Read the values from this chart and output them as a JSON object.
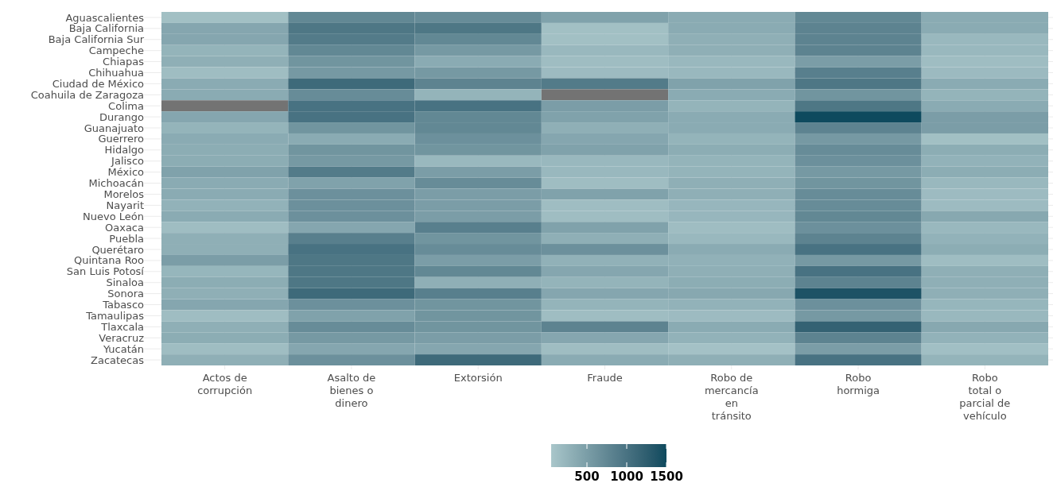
{
  "chart_data": {
    "type": "heatmap",
    "categories": [
      "Actos de\ncorrupción",
      "Asalto de\nbienes o\ndinero",
      "Extorsión",
      "Fraude",
      "Robo de\nmercancía\nen\ntránsito",
      "Robo\nhormiga",
      "Robo\ntotal o\nparcial de\nvehículo"
    ],
    "y_categories": [
      "Aguascalientes",
      "Baja California",
      "Baja California Sur",
      "Campeche",
      "Chiapas",
      "Chihuahua",
      "Ciudad de México",
      "Coahuila de Zaragoza",
      "Colima",
      "Durango",
      "Guanajuato",
      "Guerrero",
      "Hidalgo",
      "Jalisco",
      "México",
      "Michoacán",
      "Morelos",
      "Nayarit",
      "Nuevo León",
      "Oaxaca",
      "Puebla",
      "Querétaro",
      "Quintana Roo",
      "San Luis Potosí",
      "Sinaloa",
      "Sonora",
      "Tabasco",
      "Tamaulipas",
      "Tlaxcala",
      "Veracruz",
      "Yucatán",
      "Zacatecas"
    ],
    "cells": [
      [
        120,
        750,
        700,
        450,
        350,
        750,
        350
      ],
      [
        400,
        950,
        950,
        120,
        350,
        800,
        350
      ],
      [
        400,
        900,
        750,
        120,
        300,
        800,
        200
      ],
      [
        250,
        750,
        550,
        200,
        300,
        800,
        200
      ],
      [
        300,
        600,
        350,
        150,
        200,
        500,
        150
      ],
      [
        150,
        550,
        550,
        170,
        200,
        850,
        180
      ],
      [
        350,
        1100,
        800,
        900,
        450,
        950,
        350
      ],
      [
        350,
        700,
        250,
        null,
        350,
        600,
        250
      ],
      [
        null,
        1000,
        1000,
        500,
        250,
        950,
        350
      ],
      [
        400,
        1000,
        750,
        450,
        350,
        1500,
        500
      ],
      [
        250,
        600,
        750,
        300,
        350,
        800,
        500
      ],
      [
        350,
        350,
        650,
        400,
        250,
        550,
        120
      ],
      [
        330,
        600,
        600,
        450,
        330,
        700,
        330
      ],
      [
        330,
        550,
        200,
        200,
        250,
        650,
        270
      ],
      [
        450,
        900,
        500,
        200,
        250,
        550,
        330
      ],
      [
        350,
        450,
        700,
        150,
        300,
        600,
        200
      ],
      [
        350,
        650,
        500,
        450,
        300,
        700,
        170
      ],
      [
        270,
        650,
        500,
        150,
        220,
        700,
        170
      ],
      [
        350,
        650,
        500,
        150,
        220,
        750,
        380
      ],
      [
        150,
        400,
        850,
        450,
        150,
        650,
        200
      ],
      [
        300,
        850,
        600,
        300,
        200,
        800,
        270
      ],
      [
        300,
        1000,
        700,
        650,
        350,
        1000,
        330
      ],
      [
        500,
        950,
        500,
        280,
        280,
        550,
        150
      ],
      [
        230,
        950,
        750,
        400,
        300,
        1000,
        300
      ],
      [
        330,
        950,
        300,
        250,
        330,
        800,
        300
      ],
      [
        300,
        1100,
        850,
        400,
        380,
        1400,
        300
      ],
      [
        400,
        650,
        600,
        250,
        270,
        650,
        230
      ],
      [
        150,
        450,
        600,
        150,
        170,
        550,
        200
      ],
      [
        300,
        700,
        600,
        800,
        350,
        1200,
        380
      ],
      [
        330,
        550,
        500,
        400,
        270,
        800,
        270
      ],
      [
        150,
        400,
        400,
        150,
        100,
        500,
        130
      ],
      [
        300,
        650,
        1100,
        350,
        300,
        1000,
        250
      ]
    ],
    "clim": [
      50,
      1500
    ],
    "cticks": [
      500,
      1000,
      1500
    ],
    "grid": true
  }
}
